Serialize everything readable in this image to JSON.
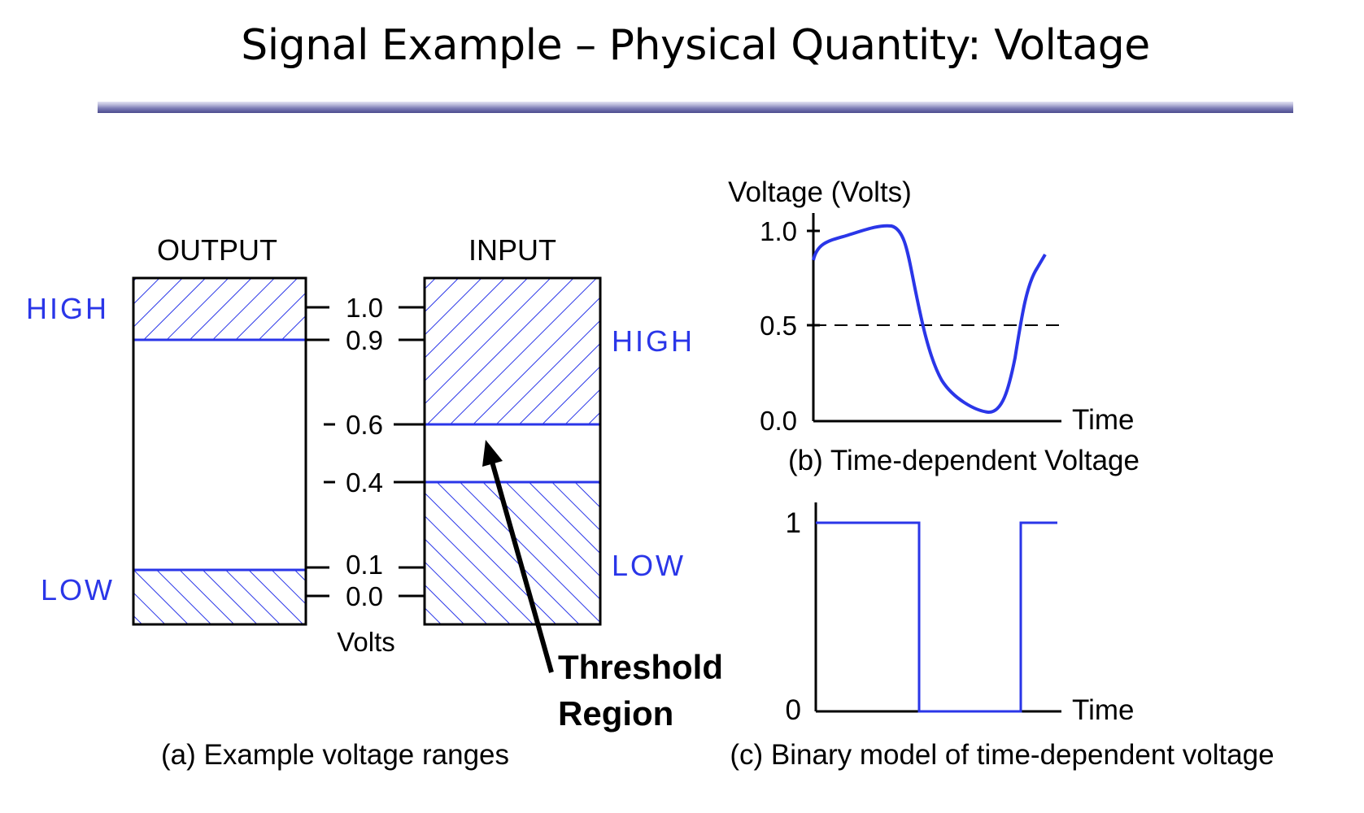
{
  "title": "Signal Example – Physical Quantity: Voltage",
  "colors": {
    "accent": "#2a36e8",
    "ink": "#000000"
  },
  "ranges": {
    "output_label": "OUTPUT",
    "input_label": "INPUT",
    "output_high": "HIGH",
    "output_low": "LOW",
    "input_high": "HIGH",
    "input_low": "LOW",
    "ticks": [
      "1.0",
      "0.9",
      "0.6",
      "0.4",
      "0.1",
      "0.0"
    ],
    "axis_unit": "Volts",
    "threshold_label_1": "Threshold",
    "threshold_label_2": "Region",
    "caption": "(a) Example voltage ranges"
  },
  "chart_data": [
    {
      "type": "line",
      "ylabel": "Voltage (Volts)",
      "xlabel": "Time",
      "yticks": [
        "1.0",
        "0.5",
        "0.0"
      ],
      "threshold": 0.5,
      "caption": "(b) Time-dependent Voltage"
    },
    {
      "type": "line",
      "xlabel": "Time",
      "yticks": [
        "1",
        "0"
      ],
      "levels": [
        1,
        0,
        1
      ],
      "caption": "(c) Binary model of time-dependent voltage"
    }
  ]
}
